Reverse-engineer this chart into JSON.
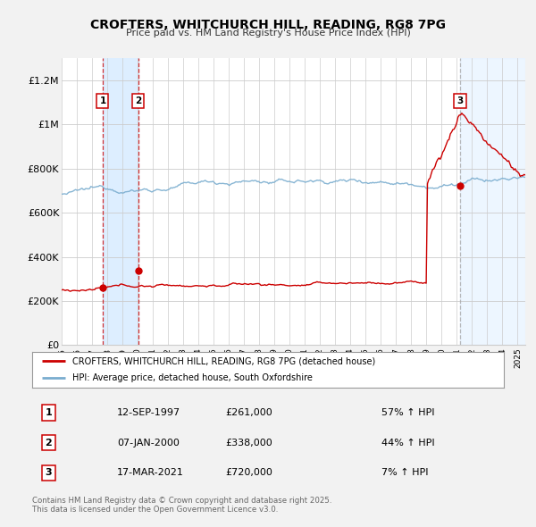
{
  "title": "CROFTERS, WHITCHURCH HILL, READING, RG8 7PG",
  "subtitle": "Price paid vs. HM Land Registry's House Price Index (HPI)",
  "legend_line1": "CROFTERS, WHITCHURCH HILL, READING, RG8 7PG (detached house)",
  "legend_line2": "HPI: Average price, detached house, South Oxfordshire",
  "red_color": "#cc0000",
  "blue_color": "#7aadcf",
  "shading_color": "#ddeeff",
  "grid_color": "#cccccc",
  "background_color": "#f2f2f2",
  "plot_bg_color": "#ffffff",
  "transactions": [
    {
      "num": 1,
      "date_num": 1997.7,
      "price": 261000,
      "label": "1",
      "pct": "57% ↑ HPI",
      "date_str": "12-SEP-1997"
    },
    {
      "num": 2,
      "date_num": 2000.03,
      "price": 338000,
      "label": "2",
      "pct": "44% ↑ HPI",
      "date_str": "07-JAN-2000"
    },
    {
      "num": 3,
      "date_num": 2021.21,
      "price": 720000,
      "label": "3",
      "pct": "7% ↑ HPI",
      "date_str": "17-MAR-2021"
    }
  ],
  "xmin": 1995.0,
  "xmax": 2025.5,
  "ymin": 0,
  "ymax": 1300000,
  "yticks": [
    0,
    200000,
    400000,
    600000,
    800000,
    1000000,
    1200000
  ],
  "ytick_labels": [
    "£0",
    "£200K",
    "£400K",
    "£600K",
    "£800K",
    "£1M",
    "£1.2M"
  ],
  "xticks": [
    1995,
    1996,
    1997,
    1998,
    1999,
    2000,
    2001,
    2002,
    2003,
    2004,
    2005,
    2006,
    2007,
    2008,
    2009,
    2010,
    2011,
    2012,
    2013,
    2014,
    2015,
    2016,
    2017,
    2018,
    2019,
    2020,
    2021,
    2022,
    2023,
    2024,
    2025
  ],
  "footer": "Contains HM Land Registry data © Crown copyright and database right 2025.\nThis data is licensed under the Open Government Licence v3.0."
}
